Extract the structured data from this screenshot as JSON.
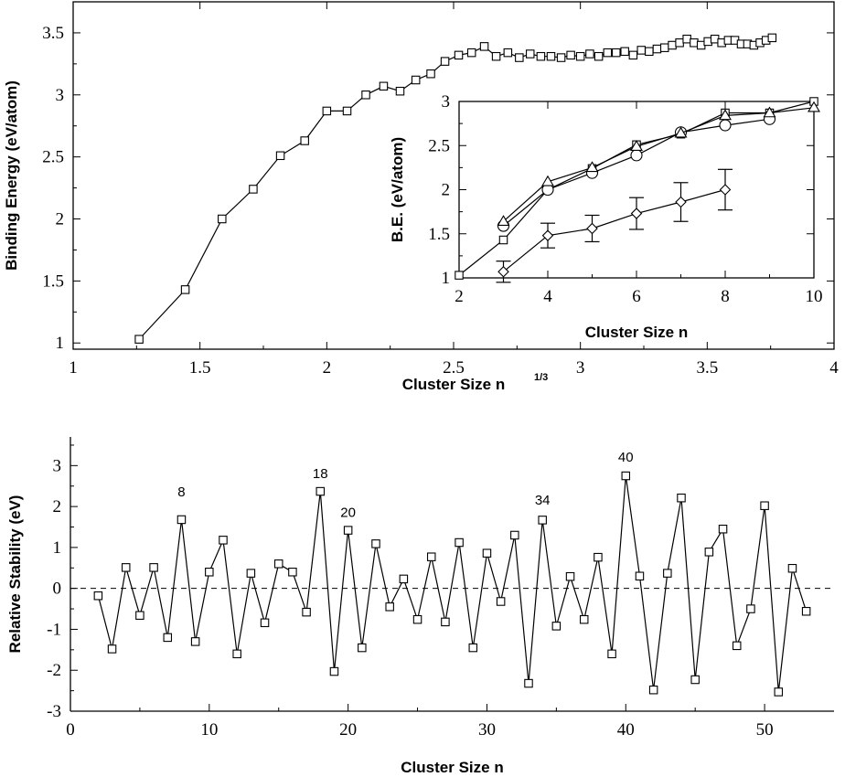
{
  "chart_data": [
    {
      "id": "binding",
      "type": "line",
      "xlabel": "Cluster  Size  n",
      "xlabel_sup": "1/3",
      "ylabel": "Binding  Energy  (eV/atom)",
      "xlim": [
        1,
        4
      ],
      "ylim": [
        0.95,
        3.75
      ],
      "xticks": [
        1,
        1.5,
        2,
        2.5,
        3,
        3.5,
        4
      ],
      "xtick_labels": [
        "1",
        "1.5",
        "2",
        "2.5",
        "3",
        "3.5",
        "4"
      ],
      "yticks": [
        1,
        1.5,
        2,
        2.5,
        3,
        3.5
      ],
      "ytick_labels": [
        "1",
        "1.5",
        "2",
        "2.5",
        "3",
        "3.5"
      ],
      "series": [
        {
          "marker": "square",
          "x": [
            1.26,
            1.442,
            1.587,
            1.71,
            1.817,
            1.913,
            2.0,
            2.08,
            2.154,
            2.224,
            2.289,
            2.351,
            2.41,
            2.466,
            2.52,
            2.571,
            2.621,
            2.668,
            2.714,
            2.759,
            2.802,
            2.844,
            2.884,
            2.924,
            2.962,
            3.0,
            3.037,
            3.072,
            3.107,
            3.141,
            3.175,
            3.208,
            3.24,
            3.271,
            3.302,
            3.332,
            3.362,
            3.391,
            3.42,
            3.448,
            3.476,
            3.503,
            3.53,
            3.557,
            3.583,
            3.609,
            3.634,
            3.659,
            3.684,
            3.708,
            3.732,
            3.756
          ],
          "y": [
            1.03,
            1.43,
            2.0,
            2.24,
            2.51,
            2.63,
            2.87,
            2.87,
            3.0,
            3.07,
            3.03,
            3.12,
            3.17,
            3.27,
            3.32,
            3.34,
            3.39,
            3.31,
            3.34,
            3.3,
            3.33,
            3.31,
            3.31,
            3.3,
            3.32,
            3.31,
            3.33,
            3.31,
            3.34,
            3.34,
            3.35,
            3.32,
            3.36,
            3.35,
            3.37,
            3.38,
            3.4,
            3.42,
            3.45,
            3.42,
            3.4,
            3.43,
            3.45,
            3.42,
            3.44,
            3.44,
            3.41,
            3.41,
            3.4,
            3.42,
            3.44,
            3.46
          ]
        }
      ]
    },
    {
      "id": "inset",
      "type": "line",
      "xlabel": "Cluster  Size  n",
      "ylabel": "B.E. (eV/atom)",
      "xlim": [
        2,
        10
      ],
      "ylim": [
        1,
        3
      ],
      "xticks": [
        2,
        4,
        6,
        8,
        10
      ],
      "xtick_labels": [
        "2",
        "4",
        "6",
        "8",
        "10"
      ],
      "yticks": [
        1,
        1.5,
        2,
        2.5,
        3
      ],
      "ytick_labels": [
        "1",
        "1.5",
        "2",
        "2.5",
        "3"
      ],
      "series": [
        {
          "marker": "square",
          "x": [
            2,
            3,
            4,
            5,
            6,
            7,
            8,
            9,
            10
          ],
          "y": [
            1.03,
            1.43,
            2.0,
            2.24,
            2.51,
            2.63,
            2.87,
            2.87,
            3.0
          ]
        },
        {
          "marker": "circle",
          "x": [
            3,
            4,
            5,
            6,
            7,
            8,
            9
          ],
          "y": [
            1.59,
            2.0,
            2.19,
            2.39,
            2.65,
            2.73,
            2.8
          ]
        },
        {
          "marker": "triangle",
          "x": [
            3,
            4,
            5,
            6,
            7,
            8,
            9,
            10
          ],
          "y": [
            1.64,
            2.09,
            2.25,
            2.49,
            2.64,
            2.84,
            2.87,
            2.93
          ]
        },
        {
          "marker": "diamond",
          "x": [
            3,
            4,
            5,
            6,
            7,
            8
          ],
          "y": [
            1.07,
            1.48,
            1.56,
            1.73,
            1.86,
            2.0
          ],
          "err": [
            0.12,
            0.14,
            0.15,
            0.18,
            0.22,
            0.23
          ]
        }
      ]
    },
    {
      "id": "stability",
      "type": "line",
      "xlabel": "Cluster  Size  n",
      "ylabel": "Relative Stability (eV)",
      "xlim": [
        0,
        55
      ],
      "ylim": [
        -3,
        3.7
      ],
      "xticks": [
        0,
        10,
        20,
        30,
        40,
        50
      ],
      "xtick_labels": [
        "0",
        "10",
        "20",
        "30",
        "40",
        "50"
      ],
      "yticks": [
        -3,
        -2,
        -1,
        0,
        1,
        2,
        3
      ],
      "ytick_labels": [
        "-3",
        "-2",
        "-1",
        "0",
        "1",
        "2",
        "3"
      ],
      "reference_line": {
        "y": 0,
        "style": "dashed"
      },
      "annotations": [
        {
          "text": "8",
          "x": 8,
          "y": 2.25
        },
        {
          "text": "18",
          "x": 18,
          "y": 2.7
        },
        {
          "text": "20",
          "x": 20,
          "y": 1.75
        },
        {
          "text": "34",
          "x": 34,
          "y": 2.05
        },
        {
          "text": "40",
          "x": 40,
          "y": 3.1
        }
      ],
      "series": [
        {
          "marker": "square",
          "x": [
            2,
            3,
            4,
            5,
            6,
            7,
            8,
            9,
            10,
            11,
            12,
            13,
            14,
            15,
            16,
            17,
            18,
            19,
            20,
            21,
            22,
            23,
            24,
            25,
            26,
            27,
            28,
            29,
            30,
            31,
            32,
            33,
            34,
            35,
            36,
            37,
            38,
            39,
            40,
            41,
            42,
            43,
            44,
            45,
            46,
            47,
            48,
            49,
            50,
            51,
            52,
            53
          ],
          "y": [
            -0.18,
            -1.48,
            0.51,
            -0.66,
            0.51,
            -1.2,
            1.68,
            -1.3,
            0.4,
            1.18,
            -1.6,
            0.37,
            -0.84,
            0.6,
            0.4,
            -0.58,
            2.37,
            -2.03,
            1.42,
            -1.45,
            1.09,
            -0.45,
            0.23,
            -0.76,
            0.77,
            -0.82,
            1.12,
            -1.45,
            0.86,
            -0.32,
            1.3,
            -2.32,
            1.67,
            -0.92,
            0.29,
            -0.76,
            0.76,
            -1.6,
            2.75,
            0.3,
            -2.48,
            0.37,
            2.21,
            -2.23,
            0.89,
            1.45,
            -1.4,
            -0.5,
            2.02,
            -2.53,
            0.49,
            -0.56
          ]
        }
      ]
    }
  ]
}
